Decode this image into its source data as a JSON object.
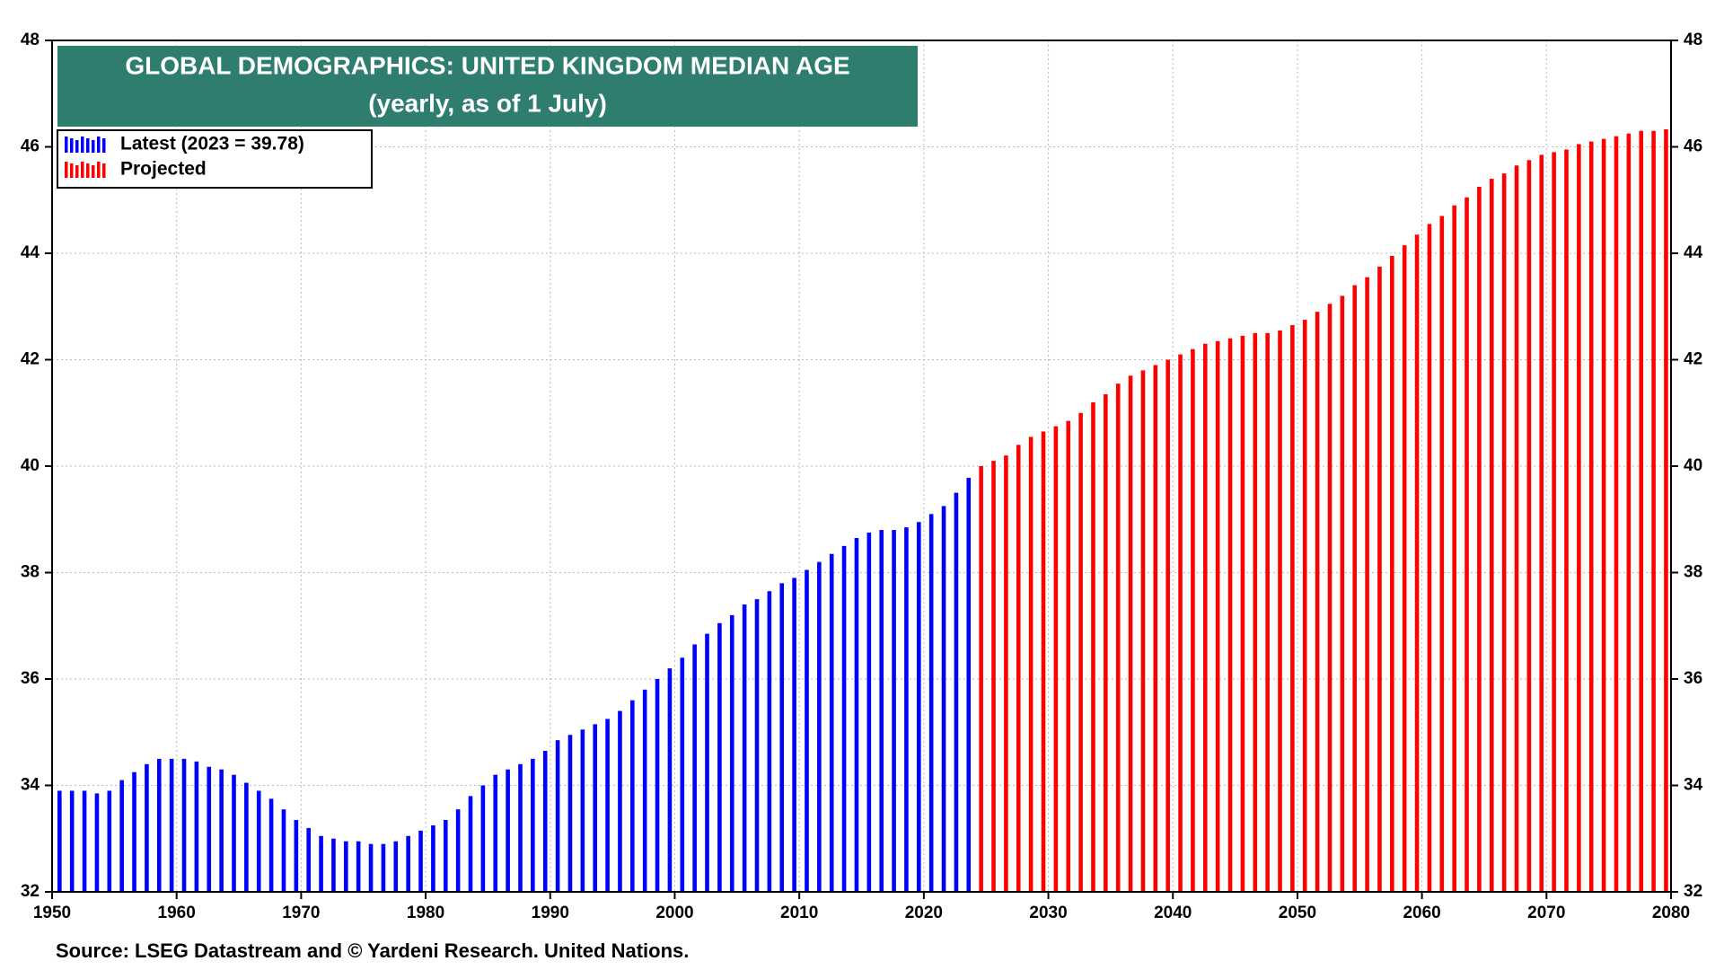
{
  "chart_data": {
    "type": "bar",
    "title": "GLOBAL DEMOGRAPHICS: UNITED KINGDOM MEDIAN AGE",
    "subtitle": "(yearly, as of 1 July)",
    "source": "Source: LSEG Datastream and © Yardeni Research. United Nations.",
    "series": [
      {
        "name": "Latest (2023 = 39.78)",
        "color": "#0000ff",
        "x": [
          1950,
          1951,
          1952,
          1953,
          1954,
          1955,
          1956,
          1957,
          1958,
          1959,
          1960,
          1961,
          1962,
          1963,
          1964,
          1965,
          1966,
          1967,
          1968,
          1969,
          1970,
          1971,
          1972,
          1973,
          1974,
          1975,
          1976,
          1977,
          1978,
          1979,
          1980,
          1981,
          1982,
          1983,
          1984,
          1985,
          1986,
          1987,
          1988,
          1989,
          1990,
          1991,
          1992,
          1993,
          1994,
          1995,
          1996,
          1997,
          1998,
          1999,
          2000,
          2001,
          2002,
          2003,
          2004,
          2005,
          2006,
          2007,
          2008,
          2009,
          2010,
          2011,
          2012,
          2013,
          2014,
          2015,
          2016,
          2017,
          2018,
          2019,
          2020,
          2021,
          2022,
          2023
        ],
        "values": [
          33.9,
          33.9,
          33.9,
          33.85,
          33.9,
          34.1,
          34.25,
          34.4,
          34.5,
          34.5,
          34.5,
          34.45,
          34.35,
          34.3,
          34.2,
          34.05,
          33.9,
          33.75,
          33.55,
          33.35,
          33.2,
          33.05,
          33.0,
          32.95,
          32.95,
          32.9,
          32.9,
          32.95,
          33.05,
          33.15,
          33.25,
          33.35,
          33.55,
          33.8,
          34.0,
          34.2,
          34.3,
          34.4,
          34.5,
          34.65,
          34.85,
          34.95,
          35.05,
          35.15,
          35.25,
          35.4,
          35.6,
          35.8,
          36.0,
          36.2,
          36.4,
          36.65,
          36.85,
          37.05,
          37.2,
          37.4,
          37.5,
          37.65,
          37.8,
          37.9,
          38.05,
          38.2,
          38.35,
          38.5,
          38.65,
          38.75,
          38.8,
          38.8,
          38.85,
          38.95,
          39.1,
          39.25,
          39.5,
          39.78
        ]
      },
      {
        "name": "Projected",
        "color": "#ff0000",
        "x": [
          2024,
          2025,
          2026,
          2027,
          2028,
          2029,
          2030,
          2031,
          2032,
          2033,
          2034,
          2035,
          2036,
          2037,
          2038,
          2039,
          2040,
          2041,
          2042,
          2043,
          2044,
          2045,
          2046,
          2047,
          2048,
          2049,
          2050,
          2051,
          2052,
          2053,
          2054,
          2055,
          2056,
          2057,
          2058,
          2059,
          2060,
          2061,
          2062,
          2063,
          2064,
          2065,
          2066,
          2067,
          2068,
          2069,
          2070,
          2071,
          2072,
          2073,
          2074,
          2075,
          2076,
          2077,
          2078,
          2079
        ],
        "values": [
          40.0,
          40.1,
          40.2,
          40.4,
          40.55,
          40.65,
          40.75,
          40.85,
          41.0,
          41.2,
          41.35,
          41.55,
          41.7,
          41.8,
          41.9,
          42.0,
          42.1,
          42.2,
          42.3,
          42.35,
          42.4,
          42.45,
          42.5,
          42.5,
          42.55,
          42.65,
          42.75,
          42.9,
          43.05,
          43.2,
          43.4,
          43.55,
          43.75,
          43.95,
          44.15,
          44.35,
          44.55,
          44.7,
          44.9,
          45.05,
          45.25,
          45.4,
          45.5,
          45.65,
          45.75,
          45.85,
          45.9,
          45.95,
          46.05,
          46.1,
          46.15,
          46.2,
          46.25,
          46.3,
          46.3,
          46.33
        ]
      }
    ],
    "xlim": [
      1950,
      2080
    ],
    "xticks": [
      1950,
      1960,
      1970,
      1980,
      1990,
      2000,
      2010,
      2020,
      2030,
      2040,
      2050,
      2060,
      2070,
      2080
    ],
    "ylim": [
      32,
      48
    ],
    "yticks": [
      32,
      34,
      36,
      38,
      40,
      42,
      44,
      46,
      48
    ],
    "grid": true,
    "title_color": "#2e7d6e",
    "legend": "upper left"
  }
}
